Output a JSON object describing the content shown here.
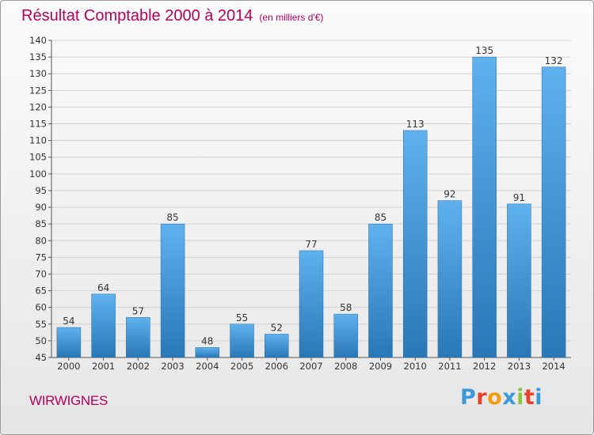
{
  "title": "Résultat Comptable 2000 à 2014",
  "subtitle": "(en milliers d'€)",
  "town": "WIRWIGNES",
  "logo": {
    "text": "Proxiti",
    "letter_colors": [
      "#3a9ad9",
      "#e8412c",
      "#f39c12",
      "#3a9ad9",
      "#8cc63f",
      "#e8412c",
      "#3a9ad9"
    ]
  },
  "colors": {
    "title": "#b5005a",
    "bar_top": "#5fb1ee",
    "bar_bottom": "#2a77b6",
    "grid": "#d2d2d2"
  },
  "chart_data": {
    "type": "bar",
    "categories": [
      "2000",
      "2001",
      "2002",
      "2003",
      "2004",
      "2005",
      "2006",
      "2007",
      "2008",
      "2009",
      "2010",
      "2011",
      "2012",
      "2013",
      "2014"
    ],
    "values": [
      54,
      64,
      57,
      85,
      48,
      55,
      52,
      77,
      58,
      85,
      113,
      92,
      135,
      91,
      132
    ],
    "ylim": [
      45,
      140
    ],
    "ytick_step": 5,
    "grid": true,
    "xlabel": "",
    "ylabel": ""
  }
}
